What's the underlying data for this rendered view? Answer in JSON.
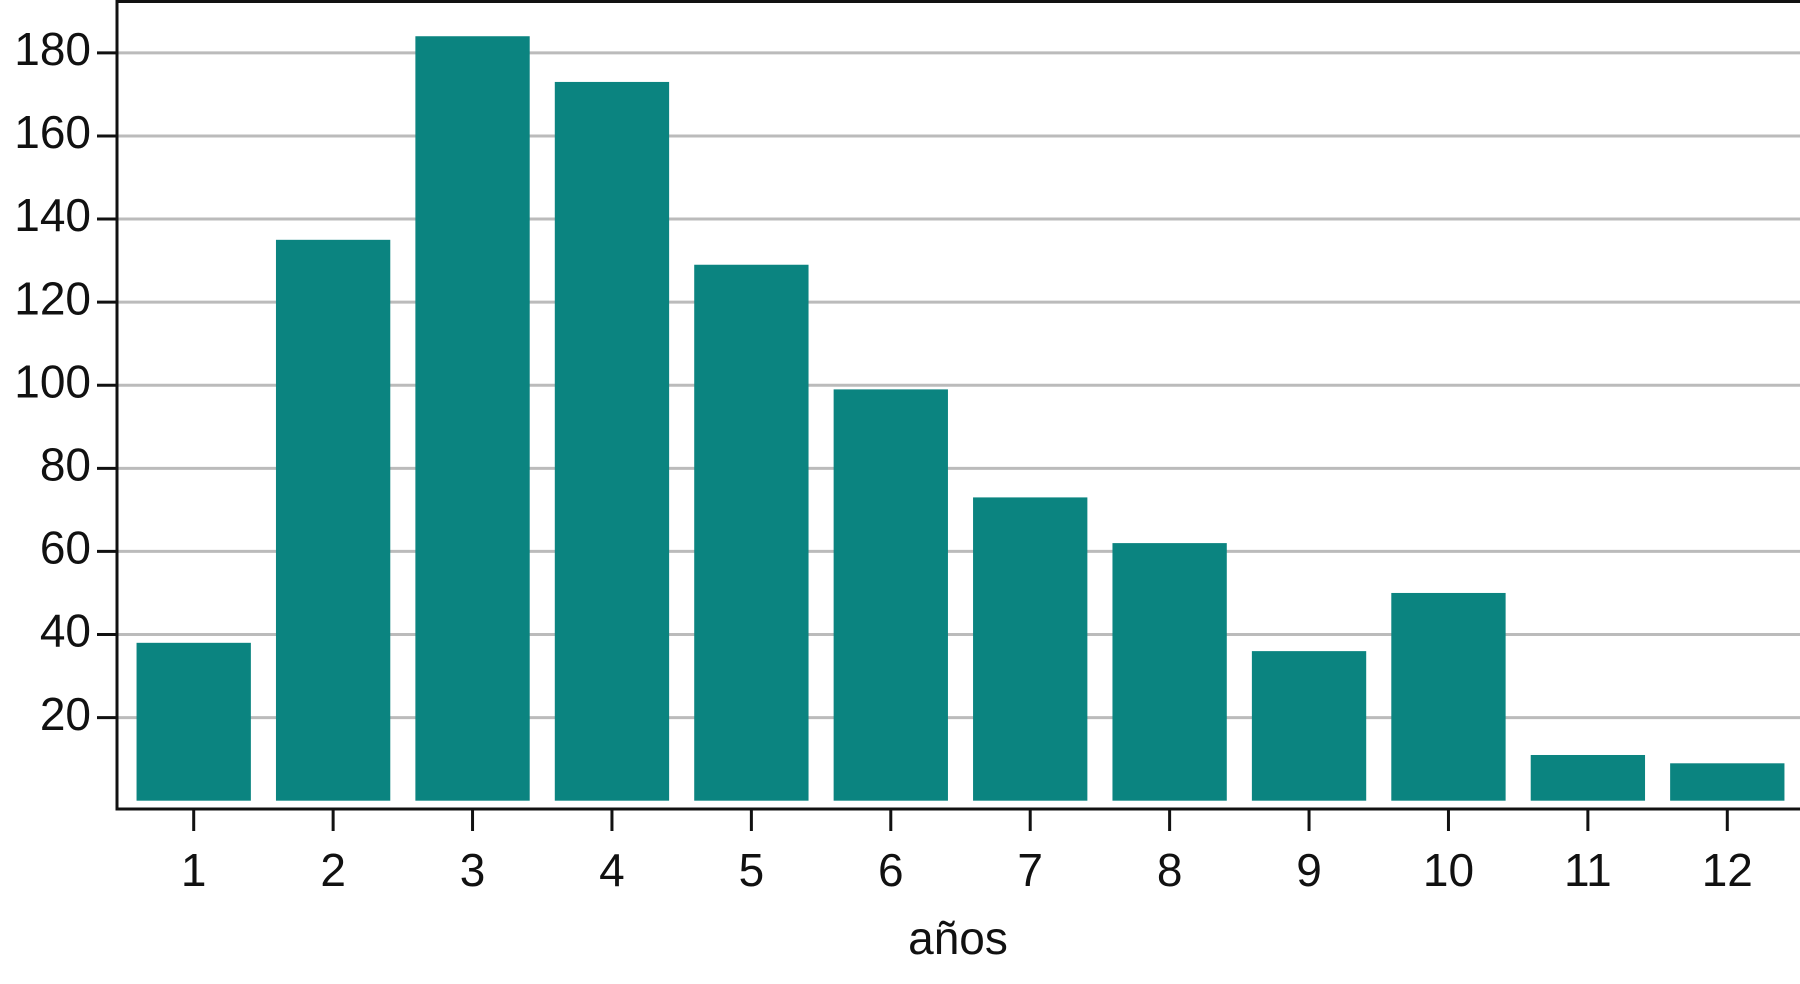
{
  "chart_data": {
    "type": "bar",
    "x_label": "años",
    "categories": [
      "1",
      "2",
      "3",
      "4",
      "5",
      "6",
      "7",
      "8",
      "9",
      "10",
      "11",
      "12"
    ],
    "values": [
      38,
      135,
      184,
      173,
      129,
      99,
      73,
      62,
      36,
      50,
      11,
      9
    ],
    "color": "#0b8480",
    "ylim": [
      -2,
      192
    ],
    "yticks": [
      20,
      40,
      60,
      80,
      100,
      120,
      140,
      160,
      180
    ],
    "grid": true
  }
}
